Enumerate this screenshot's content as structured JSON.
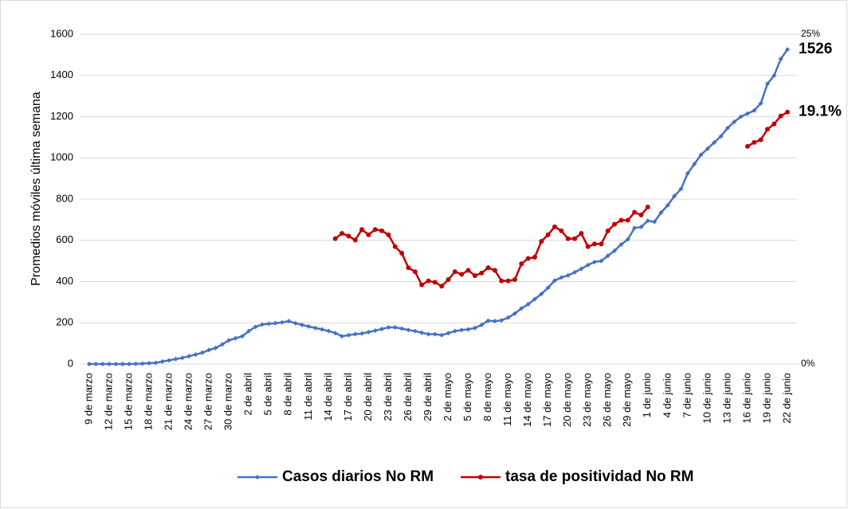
{
  "chart_data": {
    "type": "line",
    "y_label": "Promedios móviles última semana",
    "categories": [
      "9 de marzo",
      null,
      null,
      "12 de marzo",
      null,
      null,
      "15 de marzo",
      null,
      null,
      "18 de marzo",
      null,
      null,
      "21 de marzo",
      null,
      null,
      "24 de marzo",
      null,
      null,
      "27 de marzo",
      null,
      null,
      "30 de marzo",
      null,
      null,
      "2 de abril",
      null,
      null,
      "5 de abril",
      null,
      null,
      "8 de abril",
      null,
      null,
      "11 de abril",
      null,
      null,
      "14 de abril",
      null,
      null,
      "17 de abril",
      null,
      null,
      "20 de abril",
      null,
      null,
      "23 de abril",
      null,
      null,
      "26 de abril",
      null,
      null,
      "29 de abril",
      null,
      null,
      "2 de mayo",
      null,
      null,
      "5 de mayo",
      null,
      null,
      "8 de mayo",
      null,
      null,
      "11 de mayo",
      null,
      null,
      "14 de mayo",
      null,
      null,
      "17 de mayo",
      null,
      null,
      "20 de mayo",
      null,
      null,
      "23 de mayo",
      null,
      null,
      "26 de mayo",
      null,
      null,
      "29 de mayo",
      null,
      null,
      "1 de junio",
      null,
      null,
      "4 de junio",
      null,
      null,
      "7 de junio",
      null,
      null,
      "10 de junio",
      null,
      null,
      "13 de junio",
      null,
      null,
      "16 de junio",
      null,
      null,
      "19 de junio",
      null,
      null,
      "22 de junio"
    ],
    "series": [
      {
        "name": "Casos diarios No RM",
        "color": "#4472c4",
        "values": [
          0,
          0,
          0,
          0,
          0,
          0,
          0,
          1,
          2,
          4,
          6,
          12,
          18,
          24,
          30,
          38,
          46,
          55,
          68,
          78,
          95,
          115,
          125,
          135,
          160,
          180,
          192,
          195,
          198,
          202,
          208,
          198,
          190,
          182,
          175,
          168,
          160,
          150,
          135,
          140,
          145,
          148,
          155,
          162,
          170,
          178,
          178,
          172,
          165,
          160,
          152,
          145,
          145,
          140,
          150,
          160,
          165,
          168,
          175,
          190,
          210,
          208,
          212,
          225,
          245,
          270,
          290,
          315,
          340,
          370,
          405,
          420,
          430,
          445,
          462,
          480,
          495,
          500,
          525,
          550,
          580,
          605,
          660,
          665,
          695,
          690,
          735,
          770,
          815,
          850,
          925,
          970,
          1015,
          1045,
          1075,
          1105,
          1145,
          1175,
          1200,
          1215,
          1230,
          1265,
          1360,
          1400,
          1480,
          1526
        ]
      },
      {
        "name": "tasa de positividad No RM",
        "color": "#c00000",
        "axis": "y2",
        "values": [
          null,
          null,
          null,
          null,
          null,
          null,
          null,
          null,
          null,
          null,
          null,
          null,
          null,
          null,
          null,
          null,
          null,
          null,
          null,
          null,
          null,
          null,
          null,
          null,
          null,
          null,
          null,
          null,
          null,
          null,
          null,
          null,
          null,
          null,
          null,
          null,
          null,
          9.5,
          9.9,
          9.7,
          9.4,
          10.2,
          9.8,
          10.2,
          10.1,
          9.8,
          8.9,
          8.4,
          7.3,
          7.0,
          6.0,
          6.3,
          6.2,
          5.9,
          6.4,
          7.0,
          6.8,
          7.1,
          6.7,
          6.9,
          7.3,
          7.1,
          6.3,
          6.3,
          6.4,
          7.6,
          8.0,
          8.1,
          9.3,
          9.8,
          10.4,
          10.1,
          9.5,
          9.5,
          9.9,
          8.9,
          9.1,
          9.1,
          10.1,
          10.6,
          10.9,
          10.9,
          11.5,
          11.3,
          11.9,
          null,
          null,
          null,
          null,
          null,
          null,
          null,
          null,
          null,
          null,
          null,
          null,
          null,
          null,
          16.5,
          16.8,
          17.0,
          17.8,
          18.2,
          18.8,
          19.1
        ],
        "value_labels": [
          null,
          null,
          null,
          null,
          null,
          null,
          null,
          null,
          null,
          null,
          null,
          null,
          null,
          null,
          null,
          null,
          null,
          null,
          null,
          null,
          null,
          null,
          null,
          null,
          null,
          null,
          null,
          null,
          null,
          null,
          null,
          null,
          null,
          null,
          null,
          null,
          null,
          null,
          null,
          null,
          null,
          null,
          null,
          null,
          null,
          null,
          null,
          null,
          null,
          null,
          null,
          null,
          null,
          null,
          null,
          null,
          null,
          null,
          null,
          null,
          null,
          null,
          null,
          null,
          null,
          null,
          null,
          null,
          null,
          null,
          null,
          null,
          null,
          null,
          null,
          null,
          null,
          null,
          null,
          null,
          null,
          null,
          null,
          null,
          null,
          null,
          null,
          null,
          null,
          null,
          null,
          null,
          null,
          null,
          null,
          null,
          null,
          null,
          null,
          null,
          null,
          null,
          null,
          null,
          null,
          "19.1%"
        ]
      }
    ],
    "ylim": [
      0,
      1600
    ],
    "yticks": [
      0,
      200,
      400,
      600,
      800,
      1000,
      1200,
      1400,
      1600
    ],
    "y2lim": [
      0,
      25
    ],
    "y2ticks": [
      {
        "value": 0,
        "label": "0%"
      },
      {
        "value": 25,
        "label": "25%"
      }
    ],
    "grid": true,
    "legend": "bottom"
  }
}
